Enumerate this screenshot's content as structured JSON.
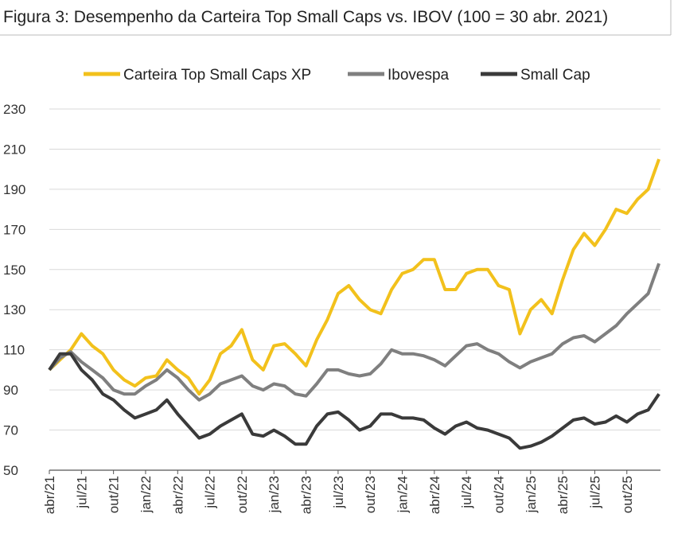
{
  "chart_data": {
    "type": "line",
    "title": "Figura 3: Desempenho da Carteira Top Small Caps vs. IBOV (100 = 30 abr. 2021)",
    "categories": [
      "abr/21",
      null,
      null,
      "jul/21",
      null,
      null,
      "out/21",
      null,
      null,
      "jan/22",
      null,
      null,
      "abr/22",
      null,
      null,
      "jul/22",
      null,
      null,
      "out/22",
      null,
      null,
      "jan/23",
      null,
      null,
      "abr/23",
      null,
      null,
      "jul/23",
      null,
      null,
      "out/23",
      null,
      null,
      "jan/24",
      null,
      null,
      "abr/24",
      null,
      null,
      "jul/24",
      null,
      null,
      "out/24",
      null,
      null,
      "jan/25",
      null,
      null,
      "abr/25",
      null,
      null,
      "jul/25",
      null,
      null,
      "out/25",
      null,
      null,
      null
    ],
    "series": [
      {
        "name": "Carteira Top Small Caps XP",
        "color": "#f2c11c",
        "values": [
          100,
          105,
          110,
          118,
          112,
          108,
          100,
          95,
          92,
          96,
          97,
          105,
          100,
          96,
          88,
          95,
          108,
          112,
          120,
          105,
          100,
          112,
          113,
          108,
          102,
          115,
          125,
          138,
          142,
          135,
          130,
          128,
          140,
          148,
          150,
          155,
          155,
          140,
          140,
          148,
          150,
          150,
          142,
          140,
          118,
          130,
          135,
          128,
          145,
          160,
          168,
          162,
          170,
          180,
          178,
          185,
          190,
          205
        ]
      },
      {
        "name": "Ibovespa",
        "color": "#7f7f7f",
        "values": [
          100,
          106,
          109,
          104,
          100,
          96,
          90,
          88,
          88,
          92,
          95,
          100,
          96,
          90,
          85,
          88,
          93,
          95,
          97,
          92,
          90,
          93,
          92,
          88,
          87,
          93,
          100,
          100,
          98,
          97,
          98,
          103,
          110,
          108,
          108,
          107,
          105,
          102,
          107,
          112,
          113,
          110,
          108,
          104,
          101,
          104,
          106,
          108,
          113,
          116,
          117,
          114,
          118,
          122,
          128,
          133,
          138,
          153
        ]
      },
      {
        "name": "Small Cap",
        "color": "#3a3a3a",
        "values": [
          100,
          108,
          108,
          100,
          95,
          88,
          85,
          80,
          76,
          78,
          80,
          85,
          78,
          72,
          66,
          68,
          72,
          75,
          78,
          68,
          67,
          70,
          67,
          63,
          63,
          72,
          78,
          79,
          75,
          70,
          72,
          78,
          78,
          76,
          76,
          75,
          71,
          68,
          72,
          74,
          71,
          70,
          68,
          66,
          61,
          62,
          64,
          67,
          71,
          75,
          76,
          73,
          74,
          77,
          74,
          78,
          80,
          88
        ]
      }
    ],
    "ylim": [
      50,
      230
    ],
    "yticks": [
      50,
      70,
      90,
      110,
      130,
      150,
      170,
      190,
      210,
      230
    ],
    "grid": true
  }
}
